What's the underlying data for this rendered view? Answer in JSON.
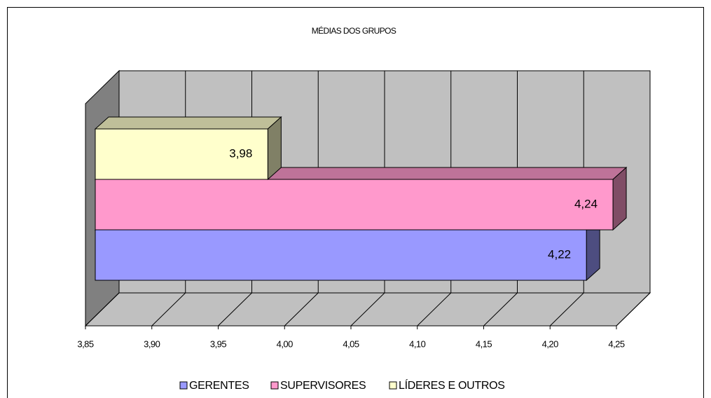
{
  "chart_data": {
    "type": "bar3d",
    "title": "MÉDIAS DOS GRUPOS",
    "categories": [
      null
    ],
    "series": [
      {
        "name": "GERENTES",
        "color": "#9999ff",
        "values": [
          4.22
        ],
        "value_labels": [
          "4,22"
        ]
      },
      {
        "name": "SUPERVISORES",
        "color": "#ff99cc",
        "values": [
          4.24
        ],
        "value_labels": [
          "4,24"
        ]
      },
      {
        "name": "LÍDERES E OUTROS",
        "color": "#ffffcc",
        "values": [
          3.98
        ],
        "value_labels": [
          "3,98"
        ]
      }
    ],
    "xlim": [
      3.85,
      4.25
    ],
    "xticks": [
      {
        "value": 3.85,
        "label": "3,85"
      },
      {
        "value": 3.9,
        "label": "3,90"
      },
      {
        "value": 3.95,
        "label": "3,95"
      },
      {
        "value": 4.0,
        "label": "4,00"
      },
      {
        "value": 4.05,
        "label": "4,05"
      },
      {
        "value": 4.1,
        "label": "4,10"
      },
      {
        "value": 4.15,
        "label": "4,15"
      },
      {
        "value": 4.2,
        "label": "4,20"
      },
      {
        "value": 4.25,
        "label": "4,25"
      }
    ],
    "grid": true,
    "legend": "bottom"
  }
}
